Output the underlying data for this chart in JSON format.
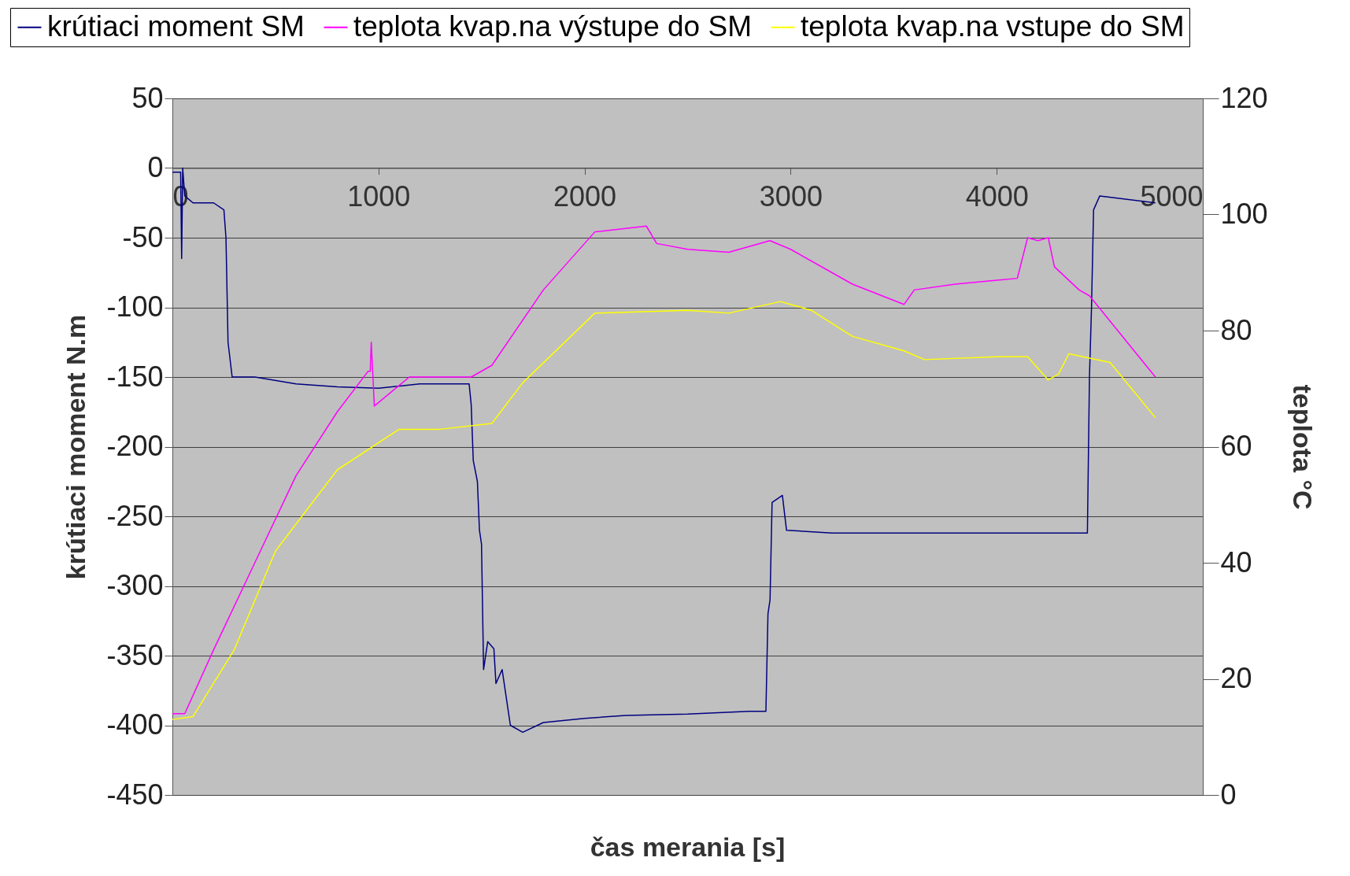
{
  "chart_data": {
    "type": "line",
    "xlabel": "čas merania [s]",
    "ylabel": "krútiaci moment   N.m",
    "y2label": "teplota °C",
    "xlim": [
      0,
      5000
    ],
    "xticks": [
      0,
      1000,
      2000,
      3000,
      4000,
      5000
    ],
    "ylim": [
      -450,
      50
    ],
    "yticks": [
      -450,
      -400,
      -350,
      -300,
      -250,
      -200,
      -150,
      -100,
      -50,
      0,
      50
    ],
    "y2lim": [
      0,
      120
    ],
    "y2ticks": [
      0,
      20,
      40,
      60,
      80,
      100,
      120
    ],
    "grid": "y",
    "legend": "top",
    "series": [
      {
        "name": "krútiaci moment SM",
        "color": "#000080",
        "x": [
          0,
          40,
          45,
          50,
          60,
          100,
          200,
          250,
          260,
          270,
          290,
          400,
          600,
          800,
          1000,
          1200,
          1440,
          1450,
          1460,
          1480,
          1490,
          1500,
          1510,
          1530,
          1560,
          1570,
          1600,
          1620,
          1640,
          1700,
          1800,
          2000,
          2200,
          2500,
          2800,
          2880,
          2890,
          2900,
          2910,
          2960,
          2980,
          3200,
          3500,
          3800,
          4200,
          4440,
          4450,
          4460,
          4470,
          4500,
          4770
        ],
        "values": [
          -3,
          -3,
          -65,
          0,
          -20,
          -25,
          -25,
          -30,
          -50,
          -125,
          -150,
          -150,
          -155,
          -157,
          -158,
          -155,
          -155,
          -170,
          -210,
          -225,
          -260,
          -270,
          -360,
          -340,
          -345,
          -370,
          -360,
          -380,
          -400,
          -405,
          -398,
          -395,
          -393,
          -392,
          -390,
          -390,
          -320,
          -310,
          -240,
          -235,
          -260,
          -262,
          -262,
          -262,
          -262,
          -262,
          -150,
          -100,
          -30,
          -20,
          -25
        ]
      },
      {
        "name": "teplota kvap.na výstupe do SM",
        "color": "#ff00ff",
        "axis": "y2",
        "x": [
          0,
          60,
          200,
          400,
          600,
          800,
          950,
          960,
          965,
          980,
          1150,
          1450,
          1550,
          1800,
          2050,
          2300,
          2350,
          2500,
          2700,
          2900,
          3000,
          3300,
          3550,
          3600,
          3800,
          4100,
          4150,
          4200,
          4250,
          4280,
          4400,
          4450,
          4770
        ],
        "values": [
          14,
          14,
          25,
          40,
          55,
          66,
          73,
          73,
          78,
          67,
          72,
          72,
          74,
          87,
          97,
          98,
          95,
          94,
          93.5,
          95.5,
          94,
          88,
          84.5,
          87,
          88,
          89,
          96,
          95.5,
          96,
          91,
          87,
          86,
          72
        ]
      },
      {
        "name": "teplota kvap.na vstupe do SM",
        "color": "#ffff00",
        "axis": "y2",
        "x": [
          0,
          100,
          300,
          500,
          800,
          1100,
          1300,
          1550,
          1700,
          2050,
          2500,
          2700,
          2950,
          3100,
          3300,
          3550,
          3650,
          4000,
          4150,
          4250,
          4300,
          4350,
          4550,
          4770
        ],
        "values": [
          13,
          13.5,
          25,
          42,
          56,
          63,
          63,
          64,
          71,
          83,
          83.5,
          83,
          85,
          83.5,
          79,
          76.5,
          75,
          75.5,
          75.5,
          71.5,
          72.5,
          76,
          74.5,
          65
        ]
      }
    ]
  }
}
